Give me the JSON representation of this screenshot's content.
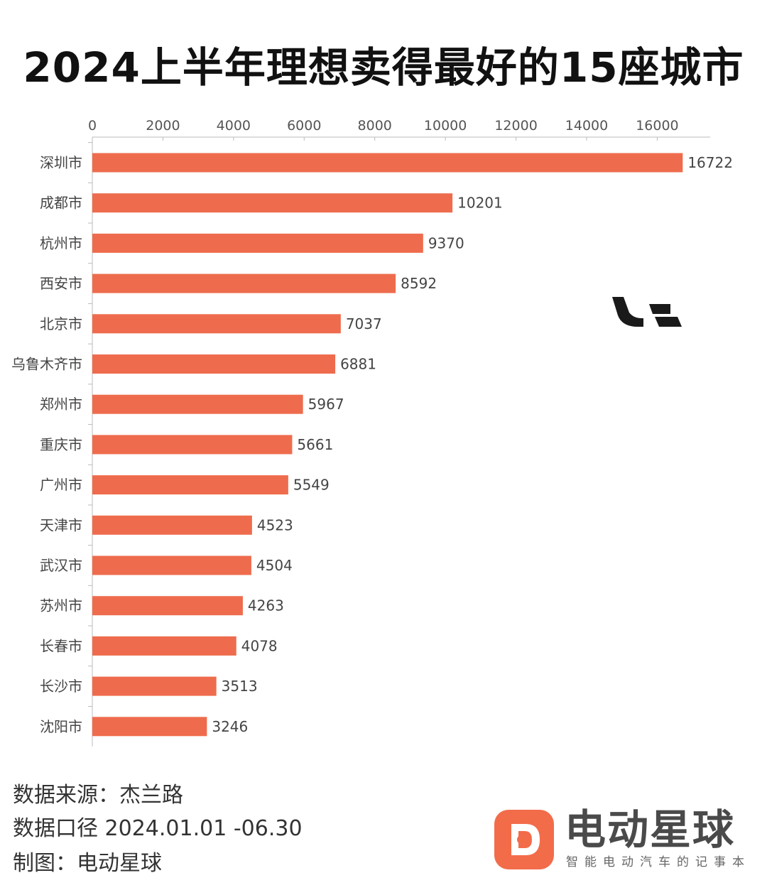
{
  "title": "2024上半年理想卖得最好的15座城市",
  "chart_data": {
    "type": "bar",
    "orientation": "horizontal",
    "title": "2024上半年理想卖得最好的15座城市",
    "categories": [
      "深圳市",
      "成都市",
      "杭州市",
      "西安市",
      "北京市",
      "乌鲁木齐市",
      "郑州市",
      "重庆市",
      "广州市",
      "天津市",
      "武汉市",
      "苏州市",
      "长春市",
      "长沙市",
      "沈阳市"
    ],
    "values": [
      16722,
      10201,
      9370,
      8592,
      7037,
      6881,
      5967,
      5661,
      5549,
      4523,
      4504,
      4263,
      4078,
      3513,
      3246
    ],
    "xticks": [
      0,
      2000,
      4000,
      6000,
      8000,
      10000,
      12000,
      14000,
      16000
    ],
    "xlim": [
      0,
      17500
    ],
    "axis_position": "top",
    "grid": false,
    "bar_color": "#ee6c4d"
  },
  "footer": {
    "source": "数据来源：杰兰路",
    "period": "数据口径 2024.01.01 -06.30",
    "maker": "制图：电动星球"
  },
  "brand": {
    "name": "电动星球",
    "slogan": "智能电动汽车的记事本",
    "logo_icon": "brand-d-logo-icon"
  },
  "watermark_icon": "li-auto-logo-icon"
}
